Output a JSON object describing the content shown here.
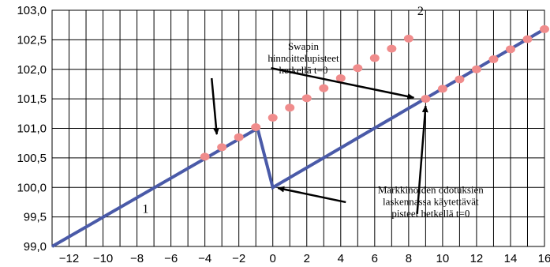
{
  "chart_data": {
    "type": "line",
    "title": "",
    "xlabel": "",
    "ylabel": "",
    "xlim": [
      -13,
      16
    ],
    "ylim": [
      99.0,
      103.0
    ],
    "grid": true,
    "x_ticks": [
      -12,
      -10,
      -8,
      -6,
      -4,
      -2,
      0,
      2,
      4,
      6,
      8,
      10,
      12,
      14,
      16
    ],
    "x_tick_labels": [
      "−12",
      "−10",
      "−8",
      "−6",
      "−4",
      "−2",
      "0",
      "2",
      "4",
      "6",
      "8",
      "10",
      "12",
      "14",
      "16"
    ],
    "y_ticks": [
      99.0,
      99.5,
      100.0,
      100.5,
      101.0,
      101.5,
      102.0,
      102.5,
      103.0
    ],
    "y_tick_labels": [
      "99,0",
      "99,5",
      "100,0",
      "100,5",
      "101,0",
      "101,5",
      "102,0",
      "102,5",
      "103,0"
    ],
    "series": [
      {
        "name": "1",
        "kind": "line",
        "color": "#4a5aa8",
        "x": [
          -13,
          -0.9,
          0,
          16
        ],
        "y": [
          99.0,
          101.0,
          100.0,
          102.68
        ]
      },
      {
        "name": "2",
        "kind": "scatter",
        "color": "#f08c8c",
        "x": [
          -4,
          -3,
          -2,
          -1,
          0,
          1,
          2,
          3,
          4,
          5,
          6,
          7,
          8
        ],
        "y": [
          100.52,
          100.68,
          100.85,
          101.02,
          101.18,
          101.35,
          101.51,
          101.68,
          101.85,
          102.02,
          102.19,
          102.35,
          102.52
        ]
      },
      {
        "name": "",
        "kind": "scatter",
        "color": "#f08c8c",
        "x": [
          9,
          10,
          11,
          12,
          13,
          14,
          15,
          16
        ],
        "y": [
          101.5,
          101.67,
          101.83,
          102.0,
          102.17,
          102.34,
          102.51,
          102.68
        ]
      }
    ],
    "labels": [
      {
        "text": "1",
        "x": -7.5,
        "y": 99.57
      },
      {
        "text": "2",
        "x": 8.7,
        "y": 102.92
      }
    ],
    "annotations": [
      {
        "lines": [
          "Swapin",
          "hinnoittelupisteet",
          "hetkellä t=0"
        ],
        "text_x": 1.8,
        "text_y": 102.33,
        "arrows": [
          {
            "from": [
              -3.6,
              101.85
            ],
            "to": [
              -3.3,
              100.9
            ]
          },
          {
            "from": [
              -0.1,
              102.02
            ],
            "to": [
              8.3,
              101.52
            ]
          }
        ]
      },
      {
        "lines": [
          "Markkinoiden odotuksien",
          "laskennassa käytettävät",
          "pisteet hetkellä t=0"
        ],
        "text_x": 9.3,
        "text_y": 99.9,
        "arrows": [
          {
            "from": [
              4.3,
              99.75
            ],
            "to": [
              0.3,
              99.99
            ]
          },
          {
            "from": [
              8.5,
              99.55
            ],
            "to": [
              9.0,
              101.38
            ]
          }
        ]
      }
    ]
  }
}
